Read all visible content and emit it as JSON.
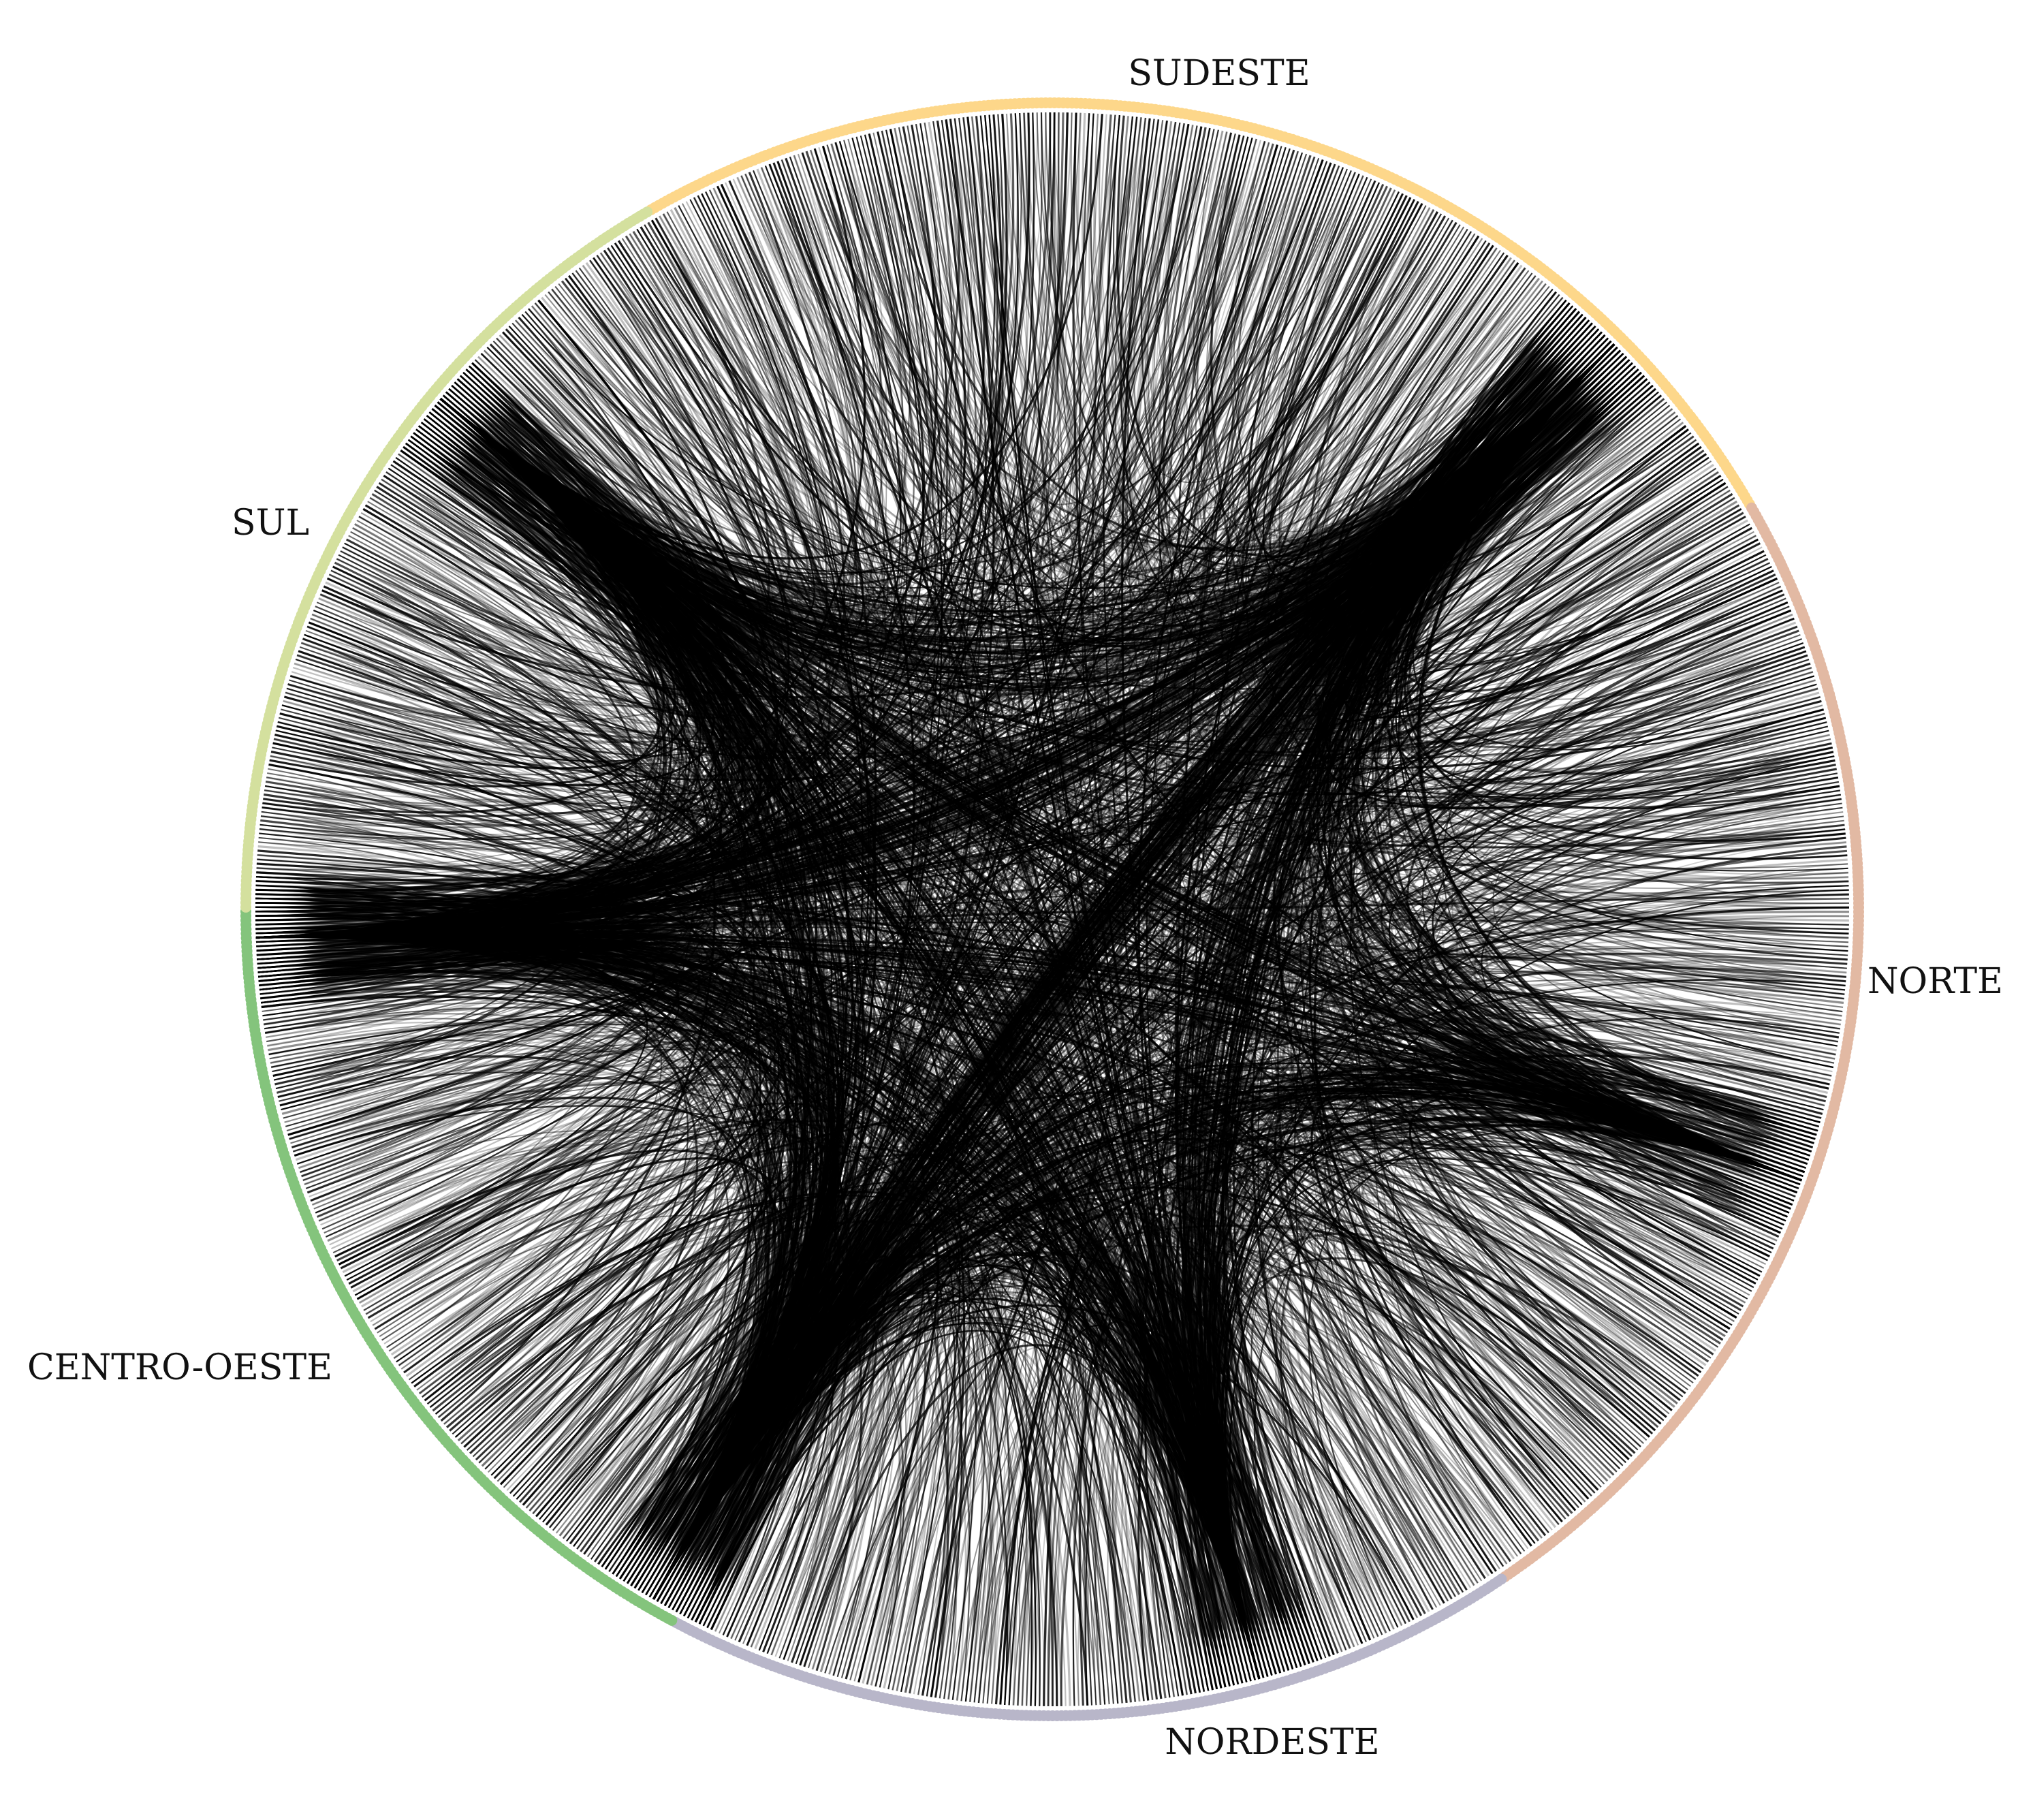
{
  "chart_data": {
    "type": "chord",
    "regions": [
      {
        "name": "SUDESTE",
        "color": "#fdd78a"
      },
      {
        "name": "NORTE",
        "color": "#e2b9a3"
      },
      {
        "name": "NORDESTE",
        "color": "#b8b6c9"
      },
      {
        "name": "CENTRO-OESTE",
        "color": "#84c47c"
      },
      {
        "name": "SUL",
        "color": "#d4e09e"
      }
    ],
    "edge_color": "#000000"
  }
}
